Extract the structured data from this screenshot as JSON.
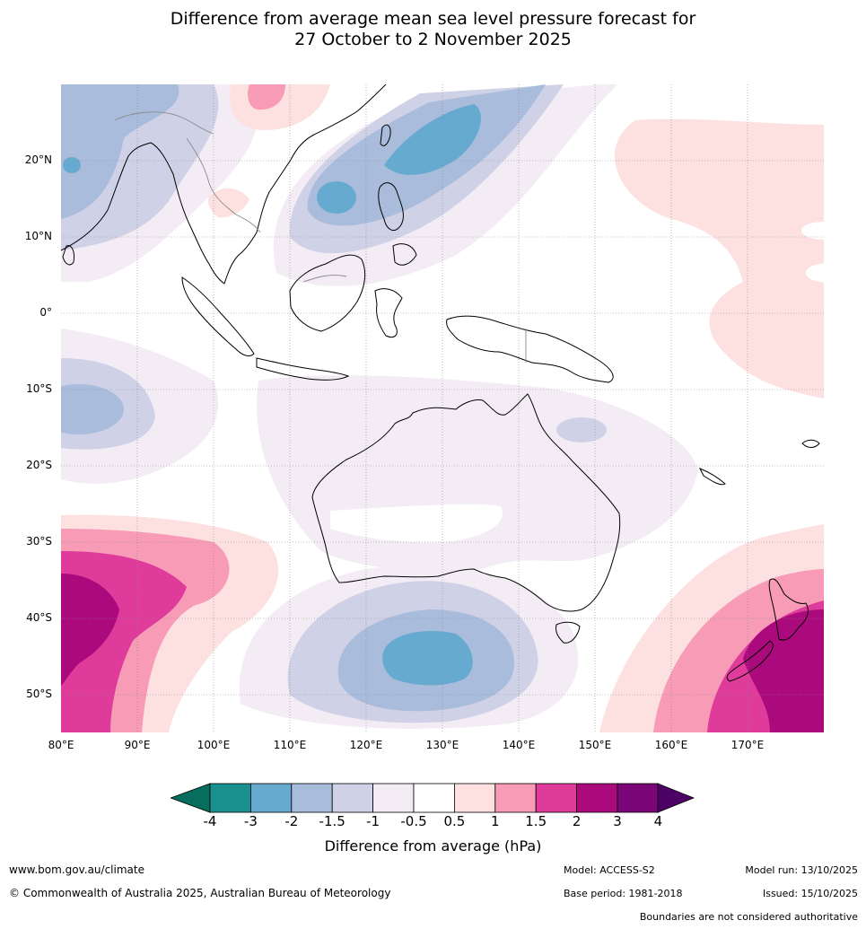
{
  "title": {
    "line1": "Difference from average mean sea level pressure forecast for",
    "line2": "27 October to 2 November 2025"
  },
  "axes": {
    "lat_labels": [
      "20°N",
      "10°N",
      "0°",
      "10°S",
      "20°S",
      "30°S",
      "40°S",
      "50°S"
    ],
    "lon_labels": [
      "80°E",
      "90°E",
      "100°E",
      "110°E",
      "120°E",
      "130°E",
      "140°E",
      "150°E",
      "160°E",
      "170°E"
    ]
  },
  "colorbar": {
    "ticks": [
      "-4",
      "-3",
      "-2",
      "-1.5",
      "-1",
      "-0.5",
      "0.5",
      "1",
      "1.5",
      "2",
      "3",
      "4"
    ],
    "colors": [
      "#1a8f8f",
      "#66aad0",
      "#a9bcdc",
      "#cfd1e6",
      "#f3ecf5",
      "#ffffff",
      "#fde0e0",
      "#f79bb6",
      "#de3b9b",
      "#ab0a7d",
      "#7b0677"
    ],
    "low_extend_color": "#076e5e",
    "high_extend_color": "#4d0366",
    "label": "Difference from average (hPa)"
  },
  "footer": {
    "website": "www.bom.gov.au/climate",
    "copyright": "© Commonwealth of Australia 2025, Australian Bureau of Meteorology",
    "model": "Model: ACCESS-S2",
    "base_period": "Base period: 1981-2018",
    "model_run": "Model run: 13/10/2025",
    "issued": "Issued: 15/10/2025",
    "disclaimer": "Boundaries are not considered authoritative"
  }
}
